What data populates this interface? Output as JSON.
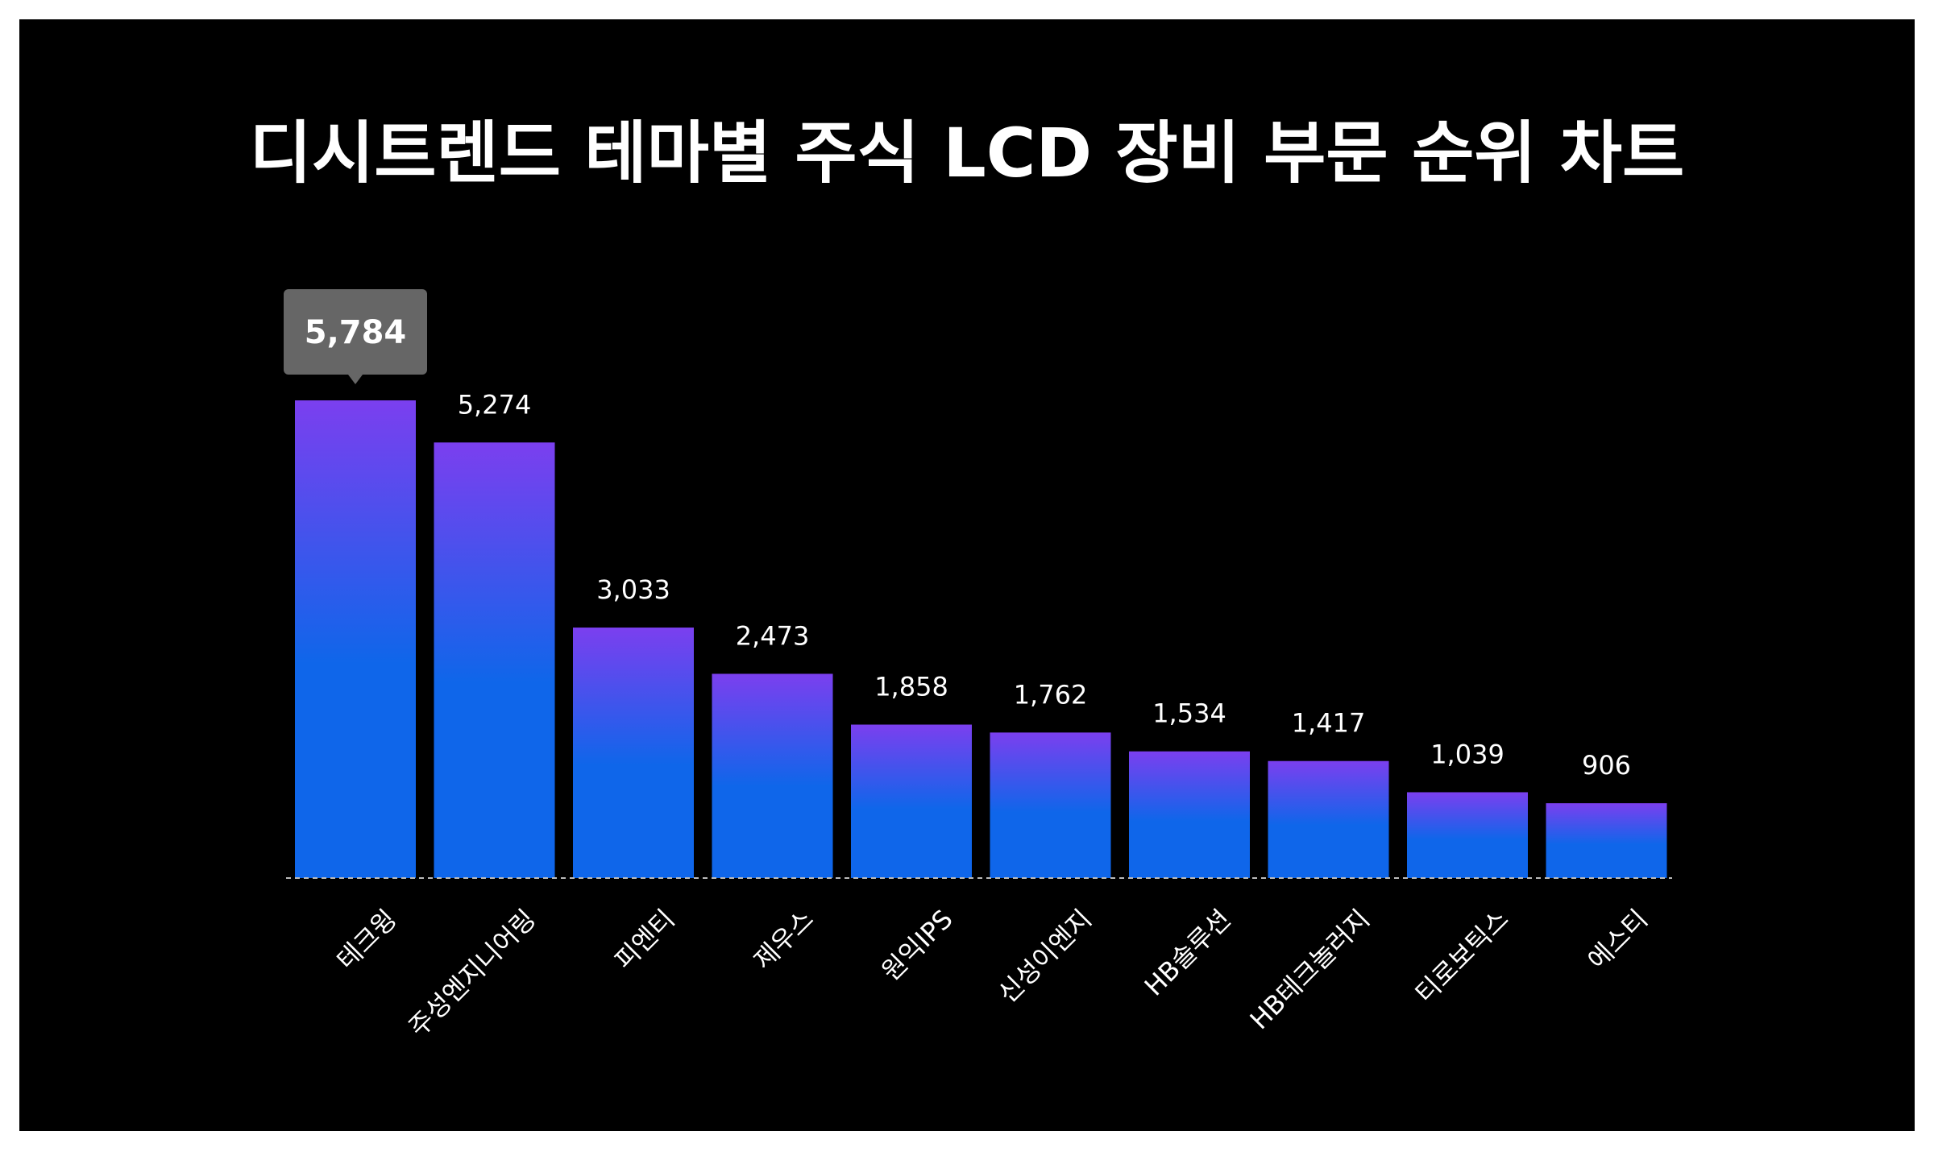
{
  "title": "디시트렌드 테마별 주식 LCD 장비 부문 순위 차트",
  "colors": {
    "background": "#000000",
    "frame": "#ffffff",
    "bar_top": "#7b3fef",
    "bar_bottom": "#0f66ea",
    "tooltip": "#666666",
    "baseline": "#bbbbbb",
    "text": "#ffffff"
  },
  "chart_data": {
    "type": "bar",
    "title": "디시트렌드 테마별 주식 LCD 장비 부문 순위 차트",
    "categories": [
      "테크윙",
      "주성엔지니어링",
      "피엔티",
      "제우스",
      "원익IPS",
      "신성이엔지",
      "HB솔루션",
      "HB테크놀러지",
      "티로보틱스",
      "에스티"
    ],
    "values": [
      5784,
      5274,
      3033,
      2473,
      1858,
      1762,
      1534,
      1417,
      1039,
      906
    ],
    "value_labels": [
      "5,784",
      "5,274",
      "3,033",
      "2,473",
      "1,858",
      "1,762",
      "1,534",
      "1,417",
      "1,039",
      "906"
    ],
    "highlighted_index": 0,
    "xlabel": "",
    "ylabel": "",
    "ylim": [
      0,
      5784
    ],
    "grid": false,
    "legend": "none"
  }
}
